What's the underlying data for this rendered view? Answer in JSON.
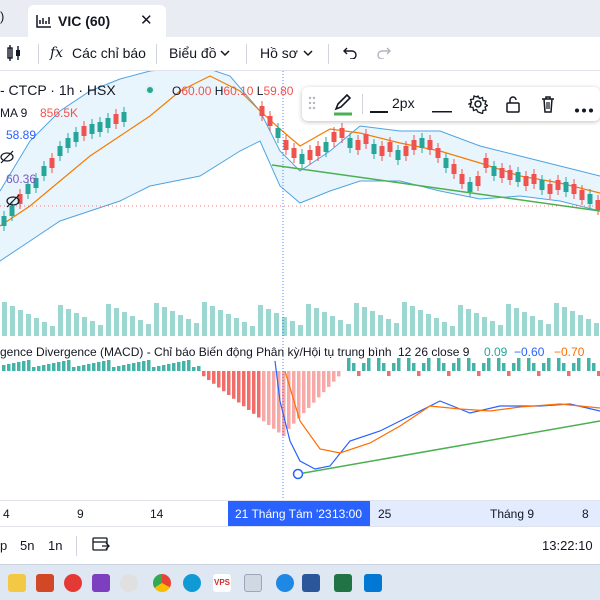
{
  "tabs": {
    "prev_fragment": ")",
    "active_title": "VIC (60)",
    "close_glyph": "✕"
  },
  "toolbar": {
    "indicators_label": "Các chỉ báo",
    "chart_type_label": "Biểu đồ",
    "profile_label": "Hồ sơ",
    "fx_glyph": "fx"
  },
  "legend": {
    "title": "- CTCP · 1h · HSX",
    "open": "60.00",
    "high": "60.10",
    "low": "59.80",
    "ma_label": "MA 9",
    "ma_value": "856.5K",
    "bb_upper": "58.89",
    "bb_lower": "60.36",
    "status_dot_color": "#26a69a",
    "o_prefix": "O",
    "h_prefix": "H",
    "l_prefix": "L"
  },
  "drawing_toolbar": {
    "width_label": "2px",
    "accent": "#26a69a"
  },
  "macd": {
    "title": "gence Divergence (MACD) - Chỉ báo Biến động Phân kỳ/Hội tụ trung bình",
    "params": "12 26 close 9",
    "hist_value": "0.09",
    "macd_value": "−0.60",
    "signal_value": "−0.70",
    "colors": {
      "hist_up": "#26a69a",
      "hist_down": "#ef5350",
      "macd": "#2962ff",
      "signal": "#ff6d00"
    }
  },
  "time_axis": {
    "ticks": [
      "4",
      "9",
      "14",
      "25",
      "Tháng 9",
      "8"
    ],
    "crosshair_date": "21 Tháng Tám '23",
    "crosshair_time": "13:00"
  },
  "bottom_bar": {
    "range_d": "p",
    "range_5n": "5n",
    "range_1n": "1n",
    "clock": "13:22:10"
  },
  "colors": {
    "up": "#26a69a",
    "down": "#ef5350",
    "ma": "#f57c00",
    "bb": "#4fa3e0",
    "bb_fill": "#e3f2fd",
    "trendline": "#4caf50",
    "crosshair": "#2962ff"
  },
  "taskbar": {
    "apps": [
      "explorer-icon",
      "powerpoint-icon",
      "app-red-icon",
      "app-purple-icon",
      "chrome-icon",
      "edge-icon",
      "vps-icon",
      "snip-icon",
      "app-teal-icon",
      "word-icon",
      "excel-icon",
      "mail-icon"
    ]
  }
}
